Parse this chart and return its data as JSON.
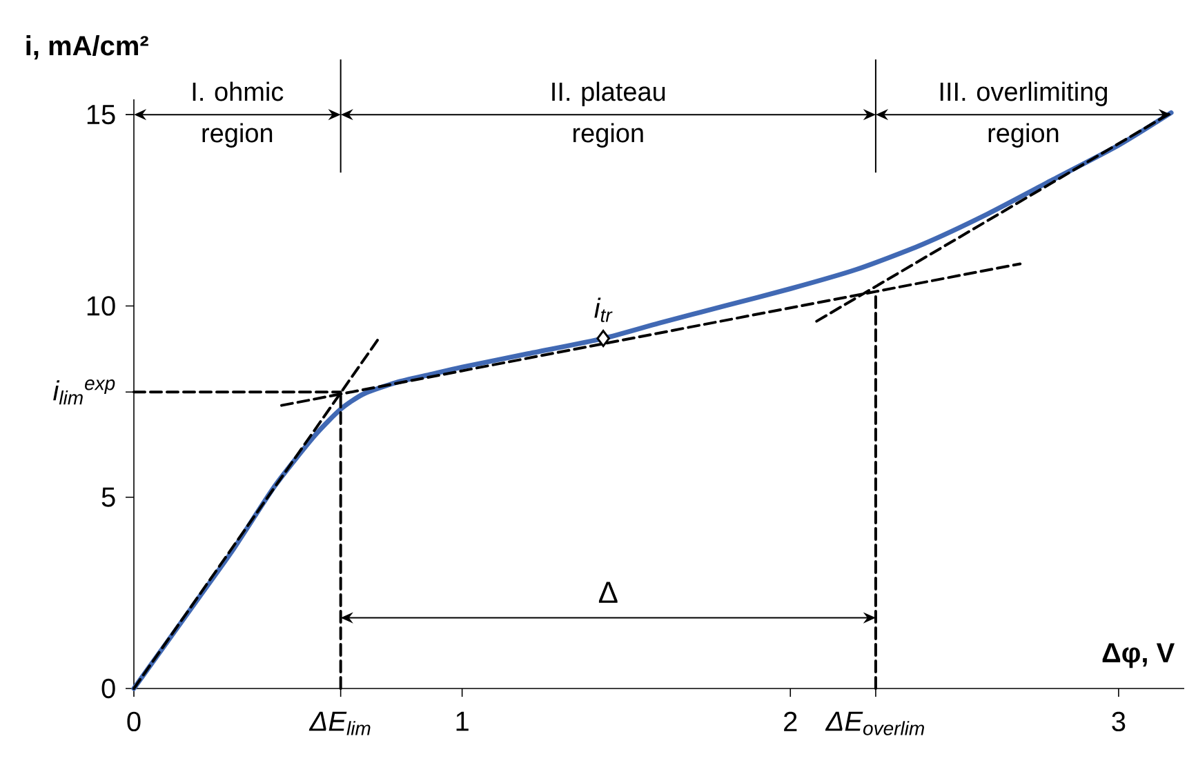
{
  "chart_data": {
    "type": "line",
    "xlabel": "Δφ, V",
    "ylabel": "i, mA/cm²",
    "xlim": [
      0,
      3.2
    ],
    "ylim": [
      0,
      15.4
    ],
    "xticks": [
      0,
      {
        "value": 0.63,
        "label": "ΔE$_{lim}$"
      },
      1,
      2,
      {
        "value": 2.26,
        "label": "ΔE$_{overlim}$"
      },
      3
    ],
    "yticks": [
      0,
      5,
      {
        "value": 7.75,
        "label": "i$_{lim}$$^{exp}$"
      },
      10,
      15
    ],
    "series": [
      {
        "color": "#4169b4",
        "line_style": "solid",
        "x": [
          0,
          0.1,
          0.2,
          0.3,
          0.43,
          0.55,
          0.63,
          0.7,
          0.8,
          0.9,
          1.0,
          1.2,
          1.43,
          1.6,
          1.8,
          2.0,
          2.2,
          2.4,
          2.6,
          2.8,
          3.0,
          3.16
        ],
        "values": [
          0,
          1.2,
          2.4,
          3.6,
          5.3,
          6.6,
          7.3,
          7.7,
          8.0,
          8.2,
          8.4,
          8.75,
          9.15,
          9.55,
          10.0,
          10.45,
          10.95,
          11.6,
          12.4,
          13.3,
          14.2,
          15.05
        ]
      },
      {
        "color": "#000000",
        "line_style": "dashed",
        "x": [
          0,
          0.75
        ],
        "values": [
          0,
          9.2
        ]
      },
      {
        "color": "#000000",
        "line_style": "dashed",
        "x": [
          0.45,
          2.7
        ],
        "values": [
          7.4,
          11.1
        ]
      },
      {
        "color": "#000000",
        "line_style": "dashed",
        "x": [
          2.08,
          3.16
        ],
        "values": [
          9.6,
          15.05
        ]
      },
      {
        "color": "#000000",
        "line_style": "dashed",
        "x": [
          0,
          0.63
        ],
        "values": [
          7.75,
          7.75
        ]
      },
      {
        "color": "#000000",
        "line_style": "dashed",
        "x": [
          0.63,
          0.63
        ],
        "values": [
          0,
          7.75
        ]
      },
      {
        "color": "#000000",
        "line_style": "dashed",
        "x": [
          2.26,
          2.26
        ],
        "values": [
          0,
          10.36
        ]
      },
      {
        "type": "scatter",
        "marker": "diamond",
        "color": "#000000",
        "x": [
          1.43
        ],
        "values": [
          9.15
        ]
      }
    ],
    "ref_lines": [
      {
        "axis": "x",
        "value": 0.63,
        "line_style": "solid",
        "color": "#000000"
      },
      {
        "axis": "x",
        "value": 2.26,
        "line_style": "solid",
        "color": "#000000"
      }
    ],
    "annotations": [
      "I. ohmic region",
      "II. plateau region",
      "III. overlimiting region",
      "Δ",
      {
        "text": "i$_{tr}$",
        "x": 1.43,
        "y": 9.15
      }
    ]
  }
}
